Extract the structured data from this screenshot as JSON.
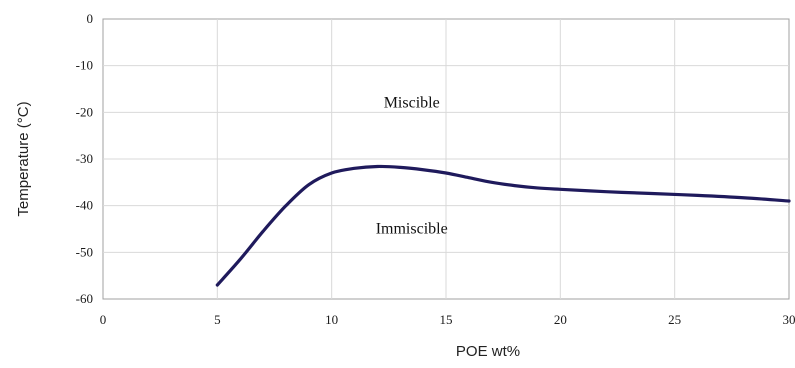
{
  "chart_data": {
    "type": "line",
    "title": "",
    "xlabel": "POE wt%",
    "ylabel": "Temperature (°C)",
    "xlim": [
      0,
      30
    ],
    "ylim": [
      -60,
      0
    ],
    "xticks": [
      0,
      5,
      10,
      15,
      20,
      25,
      30
    ],
    "yticks": [
      0,
      -10,
      -20,
      -30,
      -40,
      -50,
      -60
    ],
    "grid": true,
    "series": [
      {
        "x": [
          5,
          6,
          7,
          8,
          9,
          10,
          11,
          12,
          13,
          14,
          15,
          16,
          17,
          18,
          19,
          20,
          22,
          24,
          26,
          28,
          30
        ],
        "y": [
          -57,
          -51.5,
          -45.5,
          -40,
          -35.5,
          -33,
          -32,
          -31.6,
          -31.8,
          -32.3,
          -33,
          -34,
          -35,
          -35.7,
          -36.2,
          -36.5,
          -37,
          -37.4,
          -37.8,
          -38.3,
          -39
        ]
      }
    ],
    "annotations": [
      {
        "text": "Miscible",
        "x": 13.5,
        "y": -19
      },
      {
        "text": "Immiscible",
        "x": 13.5,
        "y": -46
      }
    ],
    "colors": {
      "line": "#1f1a5c",
      "grid": "#d9d9d9"
    }
  }
}
